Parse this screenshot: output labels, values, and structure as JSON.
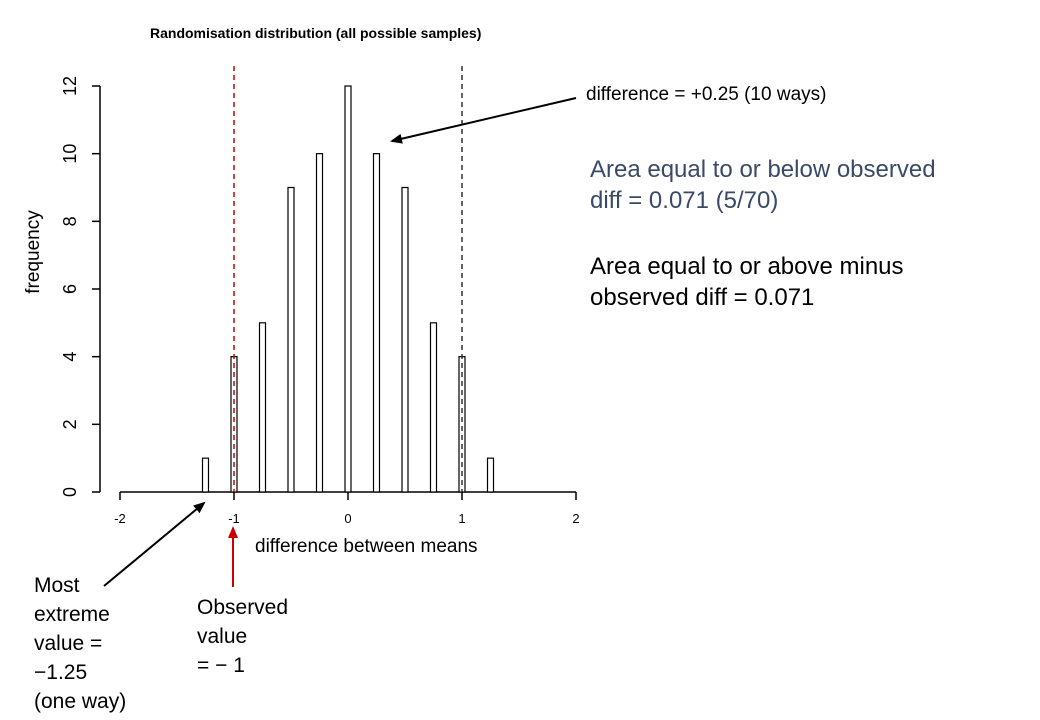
{
  "chart_data": {
    "type": "bar",
    "title": "Randomisation distribution (all possible samples)",
    "xlabel": "difference between means",
    "ylabel": "frequency",
    "x": [
      -1.25,
      -1.0,
      -0.75,
      -0.5,
      -0.25,
      0.0,
      0.25,
      0.5,
      0.75,
      1.0,
      1.25
    ],
    "values": [
      1,
      4,
      5,
      9,
      10,
      12,
      10,
      9,
      5,
      4,
      1
    ],
    "xlim": [
      -2,
      2
    ],
    "ylim": [
      0,
      12
    ],
    "x_ticks": [
      -2,
      -1,
      0,
      1,
      2
    ],
    "x_tick_labels": [
      "-2",
      "-1",
      "0",
      "1",
      "2"
    ],
    "y_ticks": [
      0,
      2,
      4,
      6,
      8,
      10,
      12
    ],
    "y_tick_labels": [
      "0",
      "2",
      "4",
      "6",
      "8",
      "10",
      "12"
    ],
    "grid": false,
    "reference_lines": [
      {
        "x": -1,
        "style": "dashed",
        "color": "#cc0000"
      },
      {
        "x": 1,
        "style": "dashed",
        "color": "#333333"
      }
    ],
    "bar_color": "#ffffff",
    "bar_edge_color": "#000000"
  },
  "annotations": {
    "difference_note": "difference = +0.25 (10 ways)",
    "area_below": [
      "Area equal to or below observed",
      "diff = 0.071   (5/70)"
    ],
    "area_above": [
      "Area  equal to or above minus",
      "observed diff  = 0.071"
    ],
    "most_extreme": [
      "Most",
      "extreme",
      "value =",
      "−1.25",
      "(one way)"
    ],
    "observed": [
      "Observed",
      "value",
      "= − 1"
    ],
    "area_below_color": "#3a4a66",
    "observed_arrow_color": "#cc0000"
  }
}
